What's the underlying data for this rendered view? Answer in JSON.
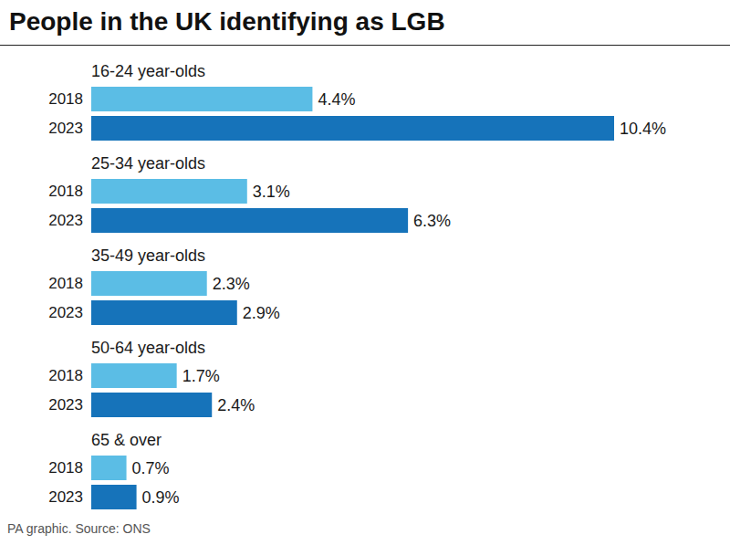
{
  "chart_data": {
    "type": "bar",
    "orientation": "horizontal",
    "title": "People in the UK identifying as LGB",
    "source": "PA graphic. Source: ONS",
    "categories": [
      "16-24 year-olds",
      "25-34 year-olds",
      "35-49 year-olds",
      "50-64 year-olds",
      "65 & over"
    ],
    "series": [
      {
        "name": "2018",
        "color": "#5bbde5",
        "values": [
          4.4,
          3.1,
          2.3,
          1.7,
          0.7
        ],
        "value_labels": [
          "4.4%",
          "3.1%",
          "2.3%",
          "1.7%",
          "0.7%"
        ]
      },
      {
        "name": "2023",
        "color": "#1673ba",
        "values": [
          10.4,
          6.3,
          2.9,
          2.4,
          0.9
        ],
        "value_labels": [
          "10.4%",
          "6.3%",
          "2.9%",
          "2.4%",
          "0.9%"
        ]
      }
    ],
    "data_labels": true,
    "tick_labels": "y",
    "grid": false
  }
}
